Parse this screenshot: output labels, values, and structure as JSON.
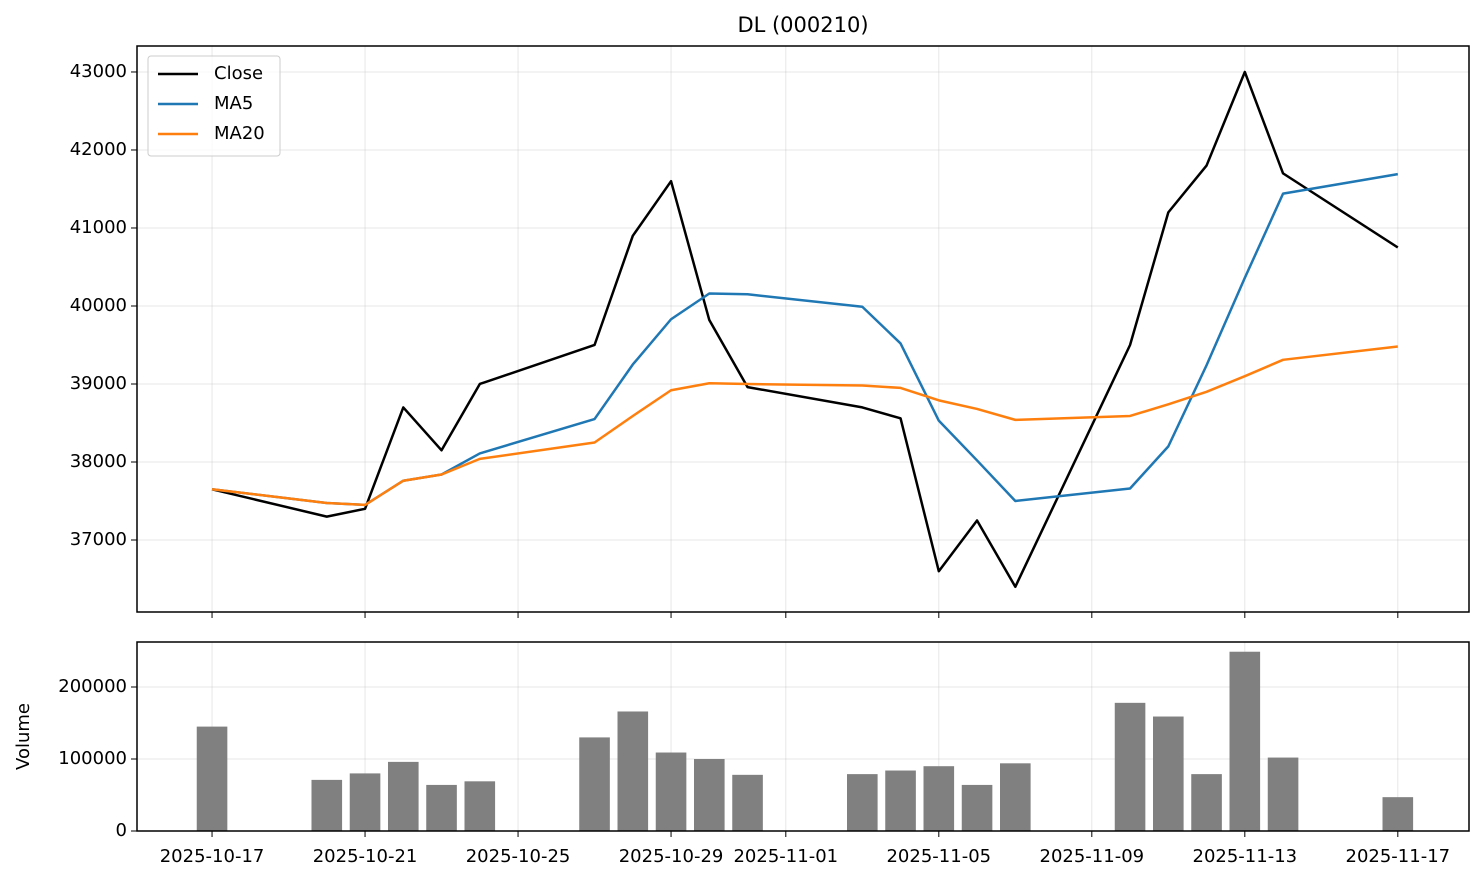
{
  "chart_data": [
    {
      "type": "line",
      "title": "DL (000210)",
      "x": [
        "2025-10-17",
        "2025-10-20",
        "2025-10-21",
        "2025-10-22",
        "2025-10-23",
        "2025-10-24",
        "2025-10-27",
        "2025-10-28",
        "2025-10-29",
        "2025-10-30",
        "2025-10-31",
        "2025-11-03",
        "2025-11-04",
        "2025-11-05",
        "2025-11-06",
        "2025-11-07",
        "2025-11-10",
        "2025-11-11",
        "2025-11-12",
        "2025-11-13",
        "2025-11-14",
        "2025-11-17"
      ],
      "series": [
        {
          "name": "Close",
          "color": "#000000",
          "values": [
            37650,
            37300,
            37400,
            38700,
            38150,
            39000,
            39500,
            40900,
            41600,
            39820,
            38960,
            38700,
            38560,
            36600,
            37250,
            36400,
            39500,
            41200,
            41800,
            43000,
            41700,
            40750
          ]
        },
        {
          "name": "MA5",
          "color": "#1f77b4",
          "values": [
            37650,
            37475,
            37450,
            37760,
            37840,
            38110,
            38550,
            39250,
            39830,
            40160,
            40150,
            39990,
            39520,
            38530,
            38020,
            37500,
            37660,
            38200,
            39240,
            40360,
            41440,
            41690
          ]
        },
        {
          "name": "MA20",
          "color": "#ff7f0e",
          "values": [
            37650,
            37475,
            37450,
            37760,
            37840,
            38040,
            38250,
            38590,
            38920,
            39010,
            39000,
            38980,
            38950,
            38790,
            38680,
            38540,
            38590,
            38740,
            38900,
            39100,
            39310,
            39480
          ]
        }
      ],
      "xlim": [
        "2025-10-15T00:55",
        "2025-11-18T20:40"
      ],
      "xticks": [
        "2025-10-17",
        "2025-10-21",
        "2025-10-25",
        "2025-10-29",
        "2025-11-01",
        "2025-11-05",
        "2025-11-09",
        "2025-11-13",
        "2025-11-17"
      ],
      "ylim": [
        36077,
        43333
      ],
      "yticks": [
        37000,
        38000,
        39000,
        40000,
        41000,
        42000,
        43000
      ],
      "grid": true,
      "legend": "upper left"
    },
    {
      "type": "bar",
      "ylabel": "Volume",
      "color": "#808080",
      "x": [
        "2025-10-17",
        "2025-10-20",
        "2025-10-21",
        "2025-10-22",
        "2025-10-23",
        "2025-10-24",
        "2025-10-27",
        "2025-10-28",
        "2025-10-29",
        "2025-10-30",
        "2025-10-31",
        "2025-11-03",
        "2025-11-04",
        "2025-11-05",
        "2025-11-06",
        "2025-11-07",
        "2025-11-10",
        "2025-11-11",
        "2025-11-12",
        "2025-11-13",
        "2025-11-14",
        "2025-11-17"
      ],
      "values": [
        145000,
        71000,
        80000,
        96000,
        64000,
        69000,
        130000,
        166000,
        109000,
        100000,
        78000,
        79000,
        84000,
        90000,
        64000,
        94000,
        178000,
        159000,
        79000,
        249000,
        102000,
        47000
      ],
      "xlim": [
        "2025-10-15T00:55",
        "2025-11-18T20:40"
      ],
      "xticks": [
        "2025-10-17",
        "2025-10-21",
        "2025-10-25",
        "2025-10-29",
        "2025-11-01",
        "2025-11-05",
        "2025-11-09",
        "2025-11-13",
        "2025-11-17"
      ],
      "ylim": [
        0,
        262500
      ],
      "yticks": [
        0,
        100000,
        200000
      ],
      "grid": true
    }
  ]
}
